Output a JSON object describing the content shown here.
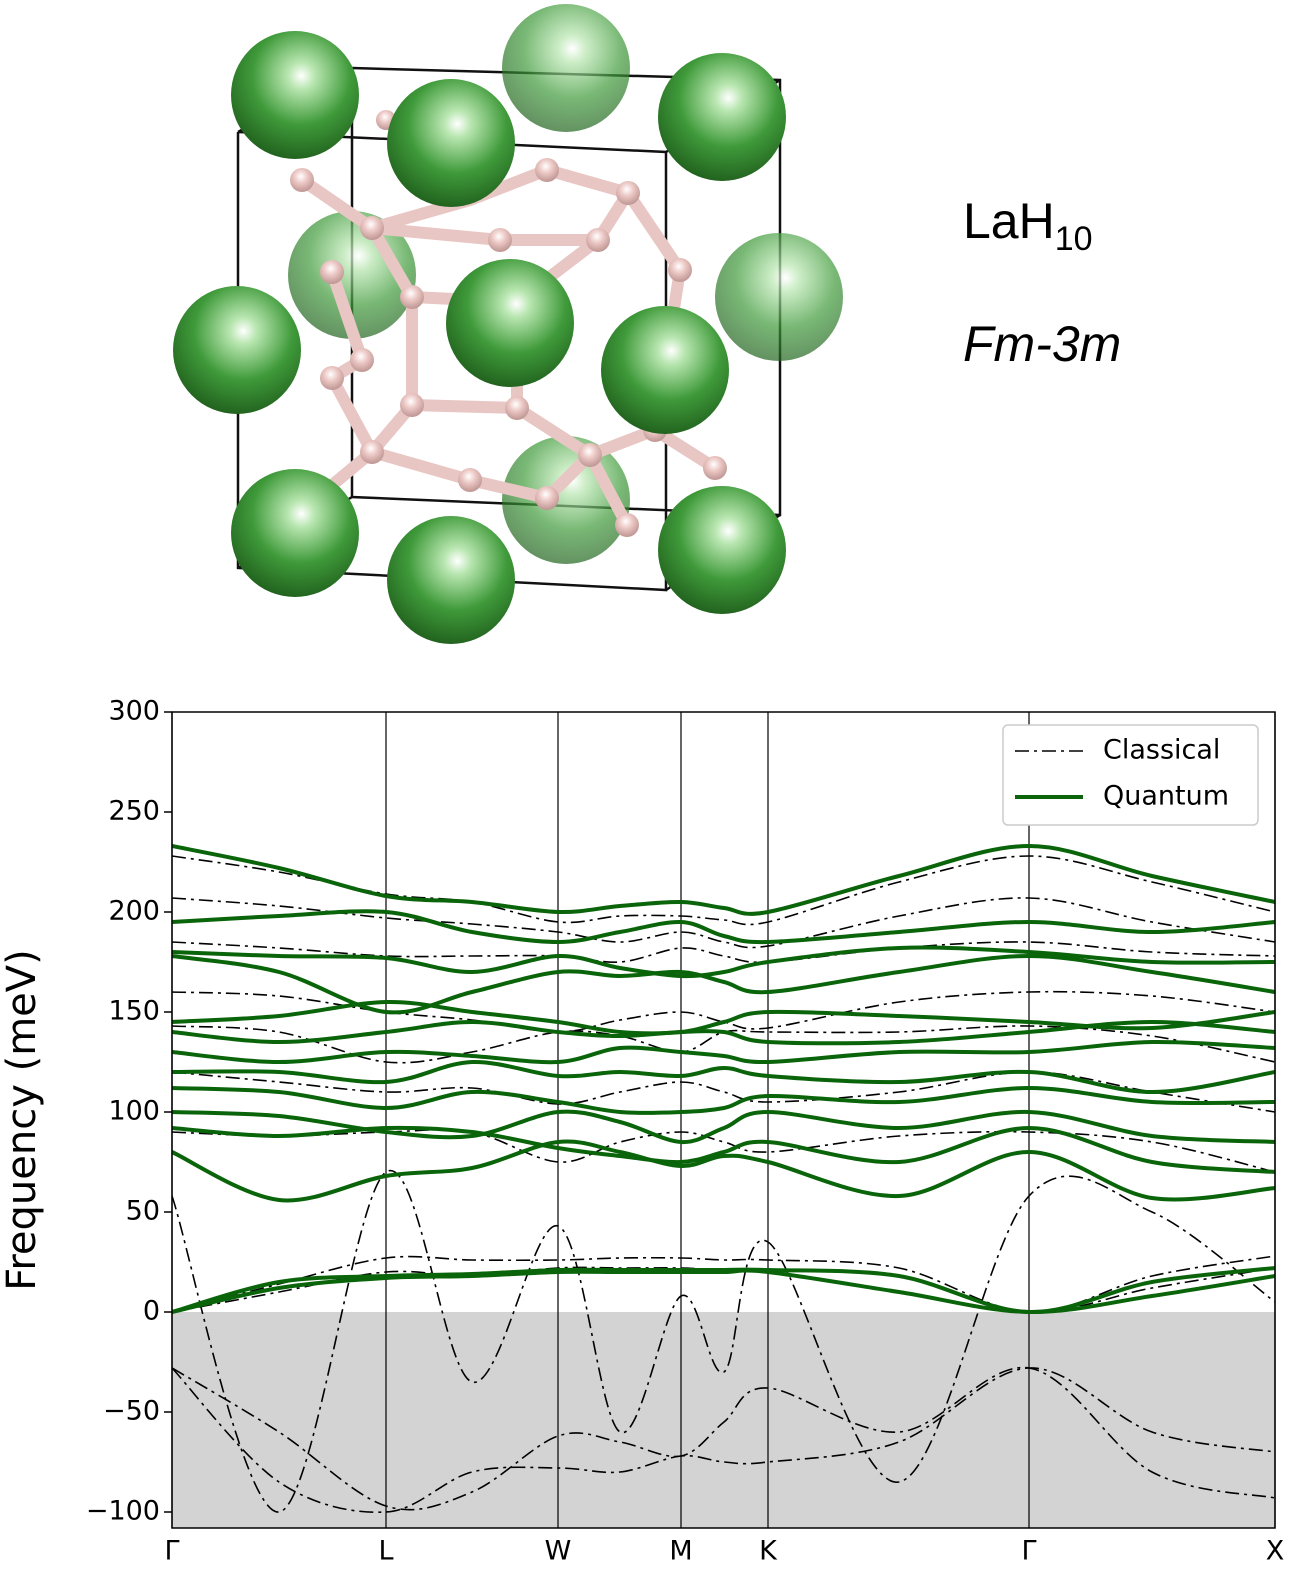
{
  "structure": {
    "formula": {
      "base": "LaH",
      "subscript": "10"
    },
    "space_group": "Fm-3m"
  },
  "chart_data": {
    "type": "band",
    "ylabel": "Frequency (meV)",
    "x": [
      0,
      1.07,
      2.14,
      3.0,
      3.86,
      4.48,
      5.09,
      5.52,
      5.96,
      7.27,
      8.57,
      9.8,
      11.03
    ],
    "xlim": [
      0,
      11.03
    ],
    "xticks": [
      {
        "value": 0,
        "label": "Γ"
      },
      {
        "value": 2.14,
        "label": "L"
      },
      {
        "value": 3.86,
        "label": "W"
      },
      {
        "value": 5.09,
        "label": "M"
      },
      {
        "value": 5.96,
        "label": "K"
      },
      {
        "value": 8.57,
        "label": "Γ"
      },
      {
        "value": 11.03,
        "label": "X"
      }
    ],
    "ylim": [
      -108,
      300
    ],
    "yticks": [
      {
        "value": -100,
        "label": "−100"
      },
      {
        "value": -50,
        "label": "−50"
      },
      0,
      50,
      100,
      150,
      200,
      250,
      300
    ],
    "negative_shade_color": "#d3d3d3",
    "legend": "upper right",
    "series": [
      {
        "name": "Classical",
        "color": "#000000",
        "line_width": 1.6,
        "dasharray": "14 5 3 5",
        "bands": [
          [
            228,
            220,
            209,
            205,
            195,
            198,
            198,
            196,
            195,
            215,
            228,
            215,
            200
          ],
          [
            207,
            203,
            197,
            194,
            190,
            185,
            190,
            185,
            183,
            198,
            207,
            195,
            185
          ],
          [
            185,
            182,
            178,
            178,
            178,
            175,
            182,
            178,
            175,
            182,
            185,
            180,
            178
          ],
          [
            160,
            158,
            150,
            146,
            140,
            146,
            150,
            145,
            142,
            155,
            160,
            158,
            150
          ],
          [
            143,
            140,
            125,
            130,
            140,
            138,
            130,
            140,
            140,
            140,
            143,
            138,
            125
          ],
          [
            120,
            115,
            110,
            112,
            104,
            110,
            115,
            110,
            105,
            110,
            120,
            110,
            100
          ],
          [
            90,
            88,
            90,
            90,
            75,
            85,
            90,
            85,
            80,
            88,
            90,
            85,
            70
          ],
          [
            0,
            14,
            27,
            26,
            26,
            27,
            27,
            26,
            26,
            22,
            0,
            18,
            28
          ],
          [
            0,
            10,
            20,
            18,
            22,
            22,
            22,
            21,
            21,
            18,
            0,
            12,
            22
          ],
          [
            -28,
            -60,
            -97,
            -90,
            -62,
            -65,
            -72,
            -55,
            -38,
            -60,
            -28,
            -80,
            -93
          ],
          [
            -28,
            -85,
            -100,
            -80,
            -78,
            -80,
            -72,
            -75,
            -75,
            -65,
            -28,
            -60,
            -70
          ],
          [
            58,
            -100,
            70,
            -35,
            43,
            -60,
            8,
            -30,
            35,
            -85,
            58,
            50,
            5
          ]
        ]
      },
      {
        "name": "Quantum",
        "color": "#0a640a",
        "line_width": 4,
        "dasharray": "none",
        "bands": [
          [
            233,
            222,
            208,
            205,
            200,
            203,
            205,
            202,
            200,
            218,
            233,
            218,
            205
          ],
          [
            195,
            198,
            200,
            190,
            185,
            190,
            195,
            188,
            185,
            190,
            195,
            190,
            195
          ],
          [
            180,
            178,
            177,
            170,
            178,
            172,
            168,
            170,
            175,
            182,
            180,
            175,
            175
          ],
          [
            178,
            170,
            150,
            160,
            170,
            168,
            170,
            165,
            160,
            170,
            178,
            170,
            160
          ],
          [
            145,
            148,
            155,
            150,
            145,
            140,
            140,
            145,
            150,
            148,
            145,
            142,
            150
          ],
          [
            140,
            135,
            140,
            145,
            140,
            138,
            140,
            140,
            135,
            135,
            140,
            145,
            140
          ],
          [
            130,
            125,
            130,
            128,
            125,
            132,
            130,
            128,
            125,
            130,
            130,
            135,
            132
          ],
          [
            120,
            120,
            115,
            125,
            118,
            120,
            118,
            122,
            118,
            115,
            120,
            110,
            120
          ],
          [
            112,
            110,
            102,
            110,
            105,
            100,
            100,
            102,
            108,
            105,
            112,
            105,
            105
          ],
          [
            100,
            98,
            90,
            88,
            100,
            95,
            85,
            92,
            100,
            92,
            100,
            88,
            85
          ],
          [
            92,
            88,
            92,
            90,
            82,
            78,
            75,
            80,
            85,
            75,
            92,
            75,
            70
          ],
          [
            80,
            56,
            68,
            72,
            85,
            80,
            73,
            78,
            75,
            58,
            80,
            57,
            62
          ],
          [
            0,
            15,
            18,
            19,
            21,
            21,
            21,
            21,
            21,
            18,
            0,
            15,
            22
          ],
          [
            0,
            12,
            17,
            18,
            20,
            20,
            20,
            20,
            20,
            10,
            0,
            8,
            18
          ]
        ]
      }
    ]
  }
}
